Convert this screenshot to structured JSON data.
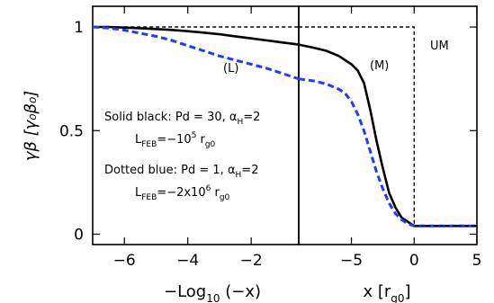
{
  "chart_data": [
    {
      "type": "line",
      "panel": "left",
      "xlabel": "−Log",
      "xlabel_sub": "10",
      "xlabel_tail": " (−x)",
      "ylabel": "γβ [γ₀β₀]",
      "xlim": [
        -7,
        -0.5
      ],
      "ylim": [
        -0.05,
        1.1
      ],
      "x_ticks": [
        -6,
        -4,
        -2
      ],
      "x_tick_labels": [
        "−6",
        "−4",
        "−2"
      ],
      "y_ticks": [
        0,
        0.5,
        1
      ],
      "y_tick_labels": [
        "0",
        "0.5",
        "1"
      ],
      "series": [
        {
          "style": "solid",
          "color": "#000000",
          "x": [
            -7,
            -6.5,
            -6,
            -5.5,
            -5,
            -4.5,
            -4,
            -3.5,
            -3,
            -2.5,
            -2,
            -1.5,
            -1,
            -0.5
          ],
          "y": [
            1.0,
            1.0,
            0.997,
            0.994,
            0.99,
            0.986,
            0.98,
            0.973,
            0.965,
            0.955,
            0.945,
            0.935,
            0.925,
            0.915
          ]
        },
        {
          "style": "dotted",
          "color": "#1f3bff",
          "x": [
            -7,
            -6.5,
            -6,
            -5.5,
            -5,
            -4.5,
            -4,
            -3.5,
            -3,
            -2.5,
            -2,
            -1.5,
            -1,
            -0.5
          ],
          "y": [
            1.0,
            0.995,
            0.985,
            0.97,
            0.955,
            0.935,
            0.91,
            0.885,
            0.86,
            0.84,
            0.82,
            0.8,
            0.775,
            0.75
          ]
        },
        {
          "style": "short-dash",
          "color": "#000000",
          "x": [
            -6,
            -0.5
          ],
          "y": [
            1.0,
            1.0
          ]
        }
      ],
      "annotations": {
        "curve_label": "(L)",
        "solid_desc": "Solid black: Pd = 30, α",
        "solid_desc_sub": "H",
        "solid_desc_tail": "=2",
        "solid_feb_main": "L",
        "solid_feb_sub": "FEB",
        "solid_feb_val": "=−10",
        "solid_feb_exp": "5",
        "solid_feb_unit": " r",
        "solid_feb_unit_sub": "g0",
        "dotted_desc": "Dotted blue: Pd = 1, α",
        "dotted_desc_sub": "H",
        "dotted_desc_tail": "=2",
        "dotted_feb_main": "L",
        "dotted_feb_sub": "FEB",
        "dotted_feb_val": "=−2x10",
        "dotted_feb_exp": "6",
        "dotted_feb_unit": " r",
        "dotted_feb_unit_sub": "g0"
      }
    },
    {
      "type": "line",
      "panel": "right",
      "xlabel": "x [r",
      "xlabel_sub": "g0",
      "xlabel_tail": "]",
      "xlim": [
        -9.2,
        5
      ],
      "ylim": [
        -0.05,
        1.1
      ],
      "x_ticks": [
        -5,
        0,
        5
      ],
      "x_tick_labels": [
        "−5",
        "0",
        "5"
      ],
      "series": [
        {
          "style": "solid",
          "color": "#000000",
          "x": [
            -9.2,
            -8,
            -7,
            -6,
            -5,
            -4.5,
            -4,
            -3.5,
            -3,
            -2.5,
            -2,
            -1.5,
            -1,
            -0.5,
            0,
            1,
            2,
            3,
            4,
            5
          ],
          "y": [
            0.915,
            0.9,
            0.885,
            0.86,
            0.82,
            0.79,
            0.73,
            0.6,
            0.45,
            0.32,
            0.2,
            0.13,
            0.08,
            0.06,
            0.04,
            0.04,
            0.04,
            0.04,
            0.04,
            0.04
          ]
        },
        {
          "style": "dotted",
          "color": "#1f3bff",
          "x": [
            -9.2,
            -8,
            -7,
            -6,
            -5.5,
            -5,
            -4.5,
            -4,
            -3.5,
            -3,
            -2.5,
            -2,
            -1.5,
            -1,
            -0.5,
            0,
            1,
            2,
            3,
            4,
            5
          ],
          "y": [
            0.75,
            0.74,
            0.725,
            0.7,
            0.68,
            0.64,
            0.58,
            0.5,
            0.4,
            0.3,
            0.22,
            0.15,
            0.1,
            0.07,
            0.05,
            0.04,
            0.04,
            0.04,
            0.04,
            0.04,
            0.04
          ]
        },
        {
          "style": "short-dash",
          "color": "#000000",
          "x": [
            -9.2,
            0,
            0,
            5
          ],
          "y": [
            1.0,
            1.0,
            0.04,
            0.04
          ]
        }
      ],
      "annotations": {
        "curve_label": "(M)",
        "region_label": "UM"
      }
    }
  ]
}
